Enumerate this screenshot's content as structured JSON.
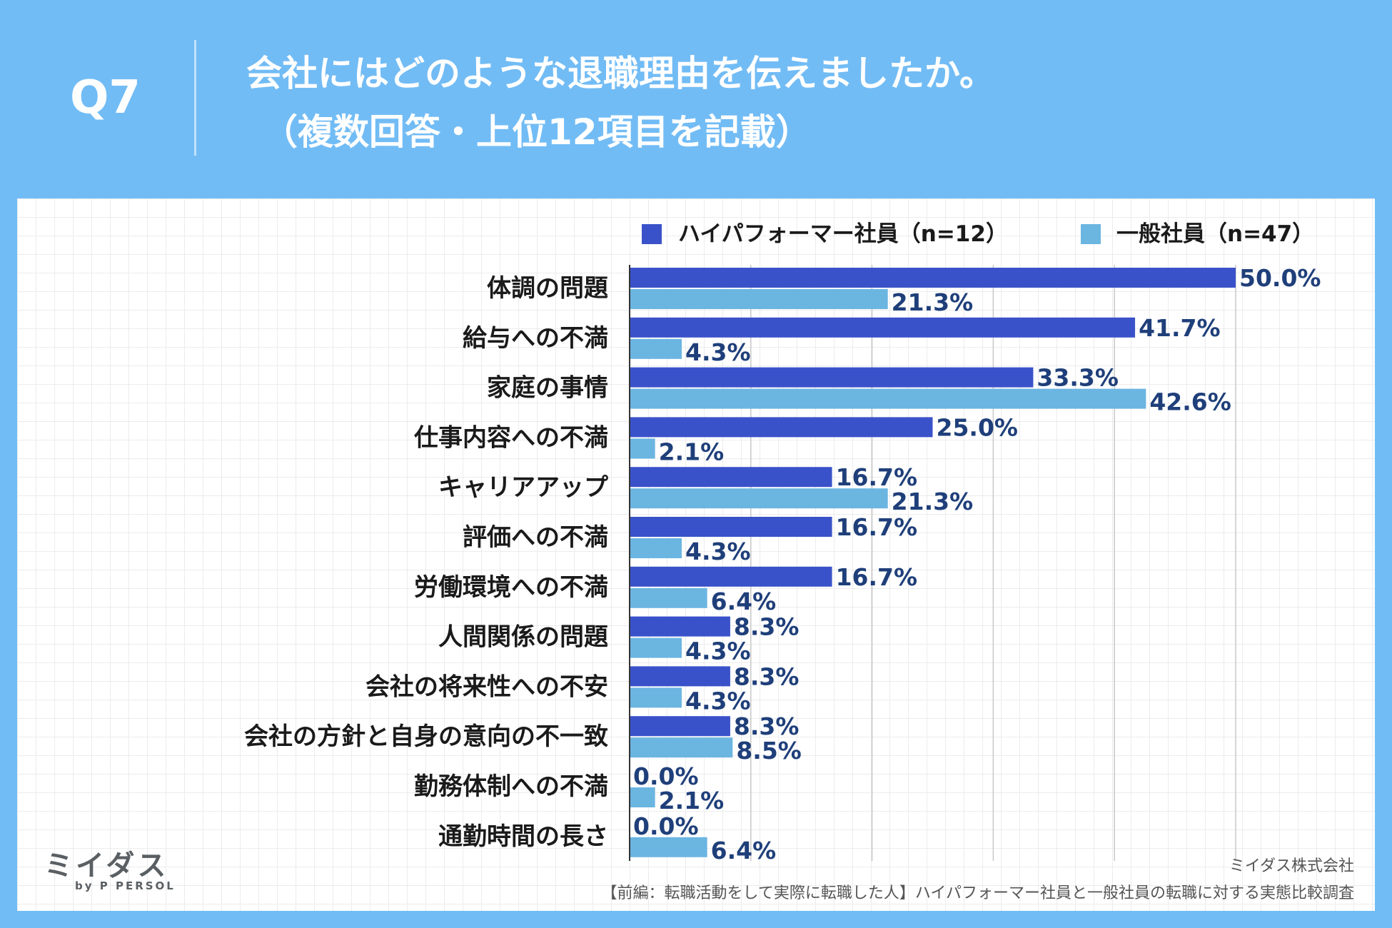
{
  "header": {
    "question_number": "Q7",
    "title_line1": "会社にはどのような退職理由を伝えましたか。",
    "title_line2": "（複数回答・上位12項目を記載）"
  },
  "footer": {
    "logo_text": "ミイダス",
    "logo_sub": "by P PERSOL",
    "company": "ミイダス株式会社",
    "source": "【前編：転職活動をして実際に転職した人】ハイパフォーマー社員と一般社員の転職に対する実態比較調査"
  },
  "colors": {
    "series1": "#3a52c9",
    "series2": "#6bb5e1",
    "value_text": "#1f3f7a"
  },
  "chart_data": {
    "type": "bar",
    "orientation": "horizontal",
    "title": "会社にはどのような退職理由を伝えましたか。（複数回答・上位12項目を記載）",
    "xlim": [
      0,
      50
    ],
    "grid": true,
    "legend_position": "top-right",
    "categories": [
      "体調の問題",
      "給与への不満",
      "家庭の事情",
      "仕事内容への不満",
      "キャリアアップ",
      "評価への不満",
      "労働環境への不満",
      "人間関係の問題",
      "会社の将来性への不安",
      "会社の方針と自身の意向の不一致",
      "勤務体制への不満",
      "通勤時間の長さ"
    ],
    "series": [
      {
        "name": "ハイパフォーマー社員（n=12）",
        "values": [
          50.0,
          41.7,
          33.3,
          25.0,
          16.7,
          16.7,
          16.7,
          8.3,
          8.3,
          8.3,
          0.0,
          0.0
        ],
        "labels": [
          "50.0%",
          "41.7%",
          "33.3%",
          "25.0%",
          "16.7%",
          "16.7%",
          "16.7%",
          "8.3%",
          "8.3%",
          "8.3%",
          "0.0%",
          "0.0%"
        ]
      },
      {
        "name": "一般社員（n=47）",
        "values": [
          21.3,
          4.3,
          42.6,
          2.1,
          21.3,
          4.3,
          6.4,
          4.3,
          4.3,
          8.5,
          2.1,
          6.4
        ],
        "labels": [
          "21.3%",
          "4.3%",
          "42.6%",
          "2.1%",
          "21.3%",
          "4.3%",
          "6.4%",
          "4.3%",
          "4.3%",
          "8.5%",
          "2.1%",
          "6.4%"
        ]
      }
    ]
  }
}
